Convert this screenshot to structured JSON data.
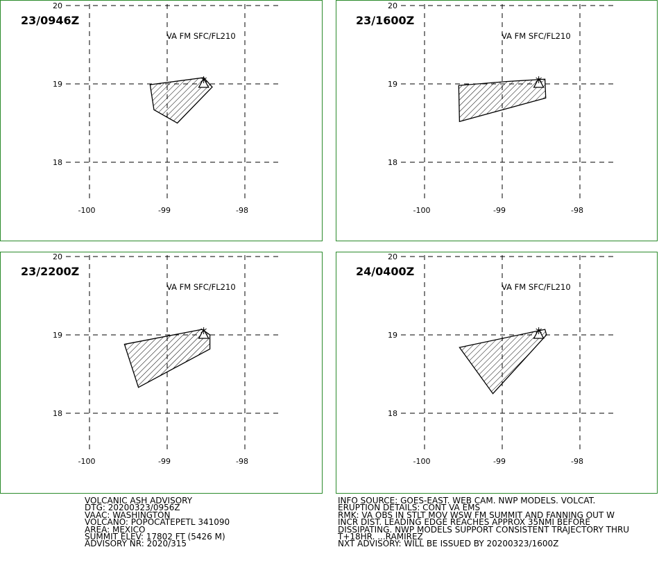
{
  "panels": [
    {
      "time": "23/0946Z",
      "layer": "VA FM SFC/FL210",
      "lat_labels": [
        "20",
        "19",
        "18"
      ],
      "lon_labels": [
        "-100",
        "-99",
        "-98"
      ],
      "ash_polygon": [
        [
          -99.22,
          18.99
        ],
        [
          -98.53,
          19.08
        ],
        [
          -98.42,
          18.96
        ],
        [
          -98.87,
          18.5
        ],
        [
          -99.17,
          18.67
        ]
      ]
    },
    {
      "time": "23/1600Z",
      "layer": "VA FM SFC/FL210",
      "lat_labels": [
        "20",
        "19",
        "18"
      ],
      "lon_labels": [
        "-100",
        "-99",
        "-98"
      ],
      "ash_polygon": [
        [
          -99.56,
          18.98
        ],
        [
          -98.95,
          19.03
        ],
        [
          -98.45,
          19.06
        ],
        [
          -98.44,
          18.82
        ],
        [
          -99.55,
          18.52
        ]
      ]
    },
    {
      "time": "23/2200Z",
      "layer": "VA FM SFC/FL210",
      "lat_labels": [
        "20",
        "19",
        "18"
      ],
      "lon_labels": [
        "-100",
        "-99",
        "-98"
      ],
      "ash_polygon": [
        [
          -99.55,
          18.88
        ],
        [
          -98.55,
          19.07
        ],
        [
          -98.45,
          19.0
        ],
        [
          -98.45,
          18.82
        ],
        [
          -99.37,
          18.33
        ]
      ]
    },
    {
      "time": "24/0400Z",
      "layer": "VA FM SFC/FL210",
      "lat_labels": [
        "20",
        "19",
        "18"
      ],
      "lon_labels": [
        "-100",
        "-99",
        "-98"
      ],
      "ash_polygon": [
        [
          -99.55,
          18.84
        ],
        [
          -98.45,
          19.07
        ],
        [
          -98.43,
          19.0
        ],
        [
          -99.12,
          18.25
        ]
      ]
    }
  ],
  "volcano": {
    "lon": -98.53,
    "lat": 19.0,
    "symbol": "triangle"
  },
  "advisory_left": [
    "VOLCANIC ASH ADVISORY",
    "DTG: 20200323/0956Z",
    "VAAC: WASHINGTON",
    "VOLCANO: POPOCATEPETL 341090",
    "AREA: MEXICO",
    "SUMMIT ELEV: 17802 FT (5426 M)",
    "ADVISORY NR: 2020/315"
  ],
  "advisory_right": [
    "INFO SOURCE: GOES-EAST. WEB CAM. NWP MODELS. VOLCAT.",
    "ERUPTION DETAILS: CONT VA EMS",
    "RMK: VA OBS IN STLT MOV WSW FM SUMMIT AND FANNING OUT W",
    "INCR DIST. LEADING EDGE REACHES APPROX 35NMI BEFORE",
    "DISSIPATING. NWP MODELS SUPPORT CONSISTENT TRAJECTORY THRU",
    "T+18HR. ...RAMIREZ",
    "NXT ADVISORY: WILL BE ISSUED BY 20200323/1600Z"
  ],
  "colors": {
    "frame": "#2a8a2a",
    "grid": "#000000",
    "ash_outline": "#000000",
    "hatch": "#000000"
  }
}
